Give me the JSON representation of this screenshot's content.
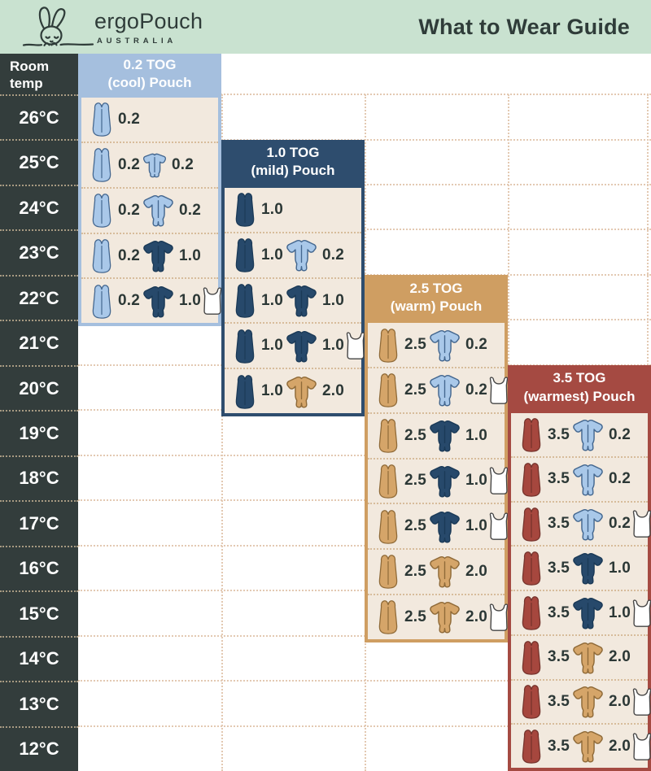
{
  "header": {
    "brand": "ergoPouch",
    "brand_sub": "AUSTRALIA",
    "title": "What to Wear Guide"
  },
  "colors": {
    "mint": "#c9e2d0",
    "charcoal": "#333d3c",
    "dark_text": "#2f3c39",
    "value_text": "#2c3836",
    "panel_body": "#f2e9de",
    "tog02": "#a5bfde",
    "tog10": "#2e4d6e",
    "tog25": "#cf9e62",
    "tog35": "#a54a42",
    "garment_lightblue": "#a9c8e9",
    "garment_lightblue_outline": "#44678f",
    "garment_navy": "#27496b",
    "garment_navy_outline": "#1b3a57",
    "garment_tan": "#d5a569",
    "garment_tan_outline": "#8f6a38",
    "garment_red": "#a6473e",
    "garment_red_outline": "#75332c",
    "garment_white": "#ffffff",
    "garment_white_outline": "#454545",
    "dash_on_white": "#e3c9b2",
    "dash_on_beige": "#d7bc9b",
    "dash_on_dark": "#a79a82"
  },
  "chart_data": {
    "type": "table",
    "title": "What to Wear Guide",
    "row_header_lines": [
      "Room",
      "temp"
    ],
    "temps": [
      "26°C",
      "25°C",
      "24°C",
      "23°C",
      "22°C",
      "21°C",
      "20°C",
      "19°C",
      "18°C",
      "17°C",
      "16°C",
      "15°C",
      "14°C",
      "13°C",
      "12°C"
    ],
    "panels": [
      {
        "id": "panel-0-2-tog",
        "title_line1": "0.2 TOG",
        "title_line2": "(cool) Pouch",
        "color_key": "tog02",
        "column": 0,
        "rows": [
          {
            "temp": "26°C",
            "items": [
              {
                "icon": "sleeping-bag",
                "color": "lightblue",
                "value": "0.2"
              }
            ]
          },
          {
            "temp": "25°C",
            "items": [
              {
                "icon": "sleeping-bag",
                "color": "lightblue",
                "value": "0.2"
              },
              {
                "icon": "romper",
                "color": "lightblue",
                "value": "0.2"
              }
            ]
          },
          {
            "temp": "24°C",
            "items": [
              {
                "icon": "sleeping-bag",
                "color": "lightblue",
                "value": "0.2"
              },
              {
                "icon": "sleepsuit",
                "color": "lightblue",
                "value": "0.2"
              }
            ]
          },
          {
            "temp": "23°C",
            "items": [
              {
                "icon": "sleeping-bag",
                "color": "lightblue",
                "value": "0.2"
              },
              {
                "icon": "sleepsuit",
                "color": "navy",
                "value": "1.0"
              }
            ]
          },
          {
            "temp": "22°C",
            "items": [
              {
                "icon": "sleeping-bag",
                "color": "lightblue",
                "value": "0.2"
              },
              {
                "icon": "sleepsuit",
                "color": "navy",
                "value": "1.0"
              },
              {
                "icon": "singlet",
                "color": "white"
              }
            ]
          }
        ]
      },
      {
        "id": "panel-1-0-tog",
        "title_line1": "1.0 TOG",
        "title_line2": "(mild) Pouch",
        "color_key": "tog10",
        "column": 1,
        "rows": [
          {
            "temp": "24°C",
            "items": [
              {
                "icon": "sleeping-bag",
                "color": "navy",
                "value": "1.0"
              }
            ]
          },
          {
            "temp": "23°C",
            "items": [
              {
                "icon": "sleeping-bag",
                "color": "navy",
                "value": "1.0"
              },
              {
                "icon": "sleepsuit",
                "color": "lightblue",
                "value": "0.2"
              }
            ]
          },
          {
            "temp": "22°C",
            "items": [
              {
                "icon": "sleeping-bag",
                "color": "navy",
                "value": "1.0"
              },
              {
                "icon": "sleepsuit",
                "color": "navy",
                "value": "1.0"
              }
            ]
          },
          {
            "temp": "21°C",
            "items": [
              {
                "icon": "sleeping-bag",
                "color": "navy",
                "value": "1.0"
              },
              {
                "icon": "sleepsuit",
                "color": "navy",
                "value": "1.0"
              },
              {
                "icon": "singlet",
                "color": "white"
              }
            ]
          },
          {
            "temp": "20°C",
            "items": [
              {
                "icon": "sleeping-bag",
                "color": "navy",
                "value": "1.0"
              },
              {
                "icon": "sleepsuit",
                "color": "tan",
                "value": "2.0"
              }
            ]
          }
        ]
      },
      {
        "id": "panel-2-5-tog",
        "title_line1": "2.5 TOG",
        "title_line2": "(warm) Pouch",
        "color_key": "tog25",
        "column": 2,
        "rows": [
          {
            "temp": "21°C",
            "items": [
              {
                "icon": "sleeping-bag",
                "color": "tan",
                "value": "2.5"
              },
              {
                "icon": "sleepsuit",
                "color": "lightblue",
                "value": "0.2"
              }
            ]
          },
          {
            "temp": "20°C",
            "items": [
              {
                "icon": "sleeping-bag",
                "color": "tan",
                "value": "2.5"
              },
              {
                "icon": "sleepsuit",
                "color": "lightblue",
                "value": "0.2"
              },
              {
                "icon": "singlet",
                "color": "white"
              }
            ]
          },
          {
            "temp": "19°C",
            "items": [
              {
                "icon": "sleeping-bag",
                "color": "tan",
                "value": "2.5"
              },
              {
                "icon": "sleepsuit",
                "color": "navy",
                "value": "1.0"
              }
            ]
          },
          {
            "temp": "18°C",
            "items": [
              {
                "icon": "sleeping-bag",
                "color": "tan",
                "value": "2.5"
              },
              {
                "icon": "sleepsuit",
                "color": "navy",
                "value": "1.0"
              },
              {
                "icon": "singlet",
                "color": "white"
              }
            ]
          },
          {
            "temp": "17°C",
            "items": [
              {
                "icon": "sleeping-bag",
                "color": "tan",
                "value": "2.5"
              },
              {
                "icon": "sleepsuit",
                "color": "navy",
                "value": "1.0"
              },
              {
                "icon": "singlet",
                "color": "white"
              }
            ]
          },
          {
            "temp": "16°C",
            "items": [
              {
                "icon": "sleeping-bag",
                "color": "tan",
                "value": "2.5"
              },
              {
                "icon": "sleepsuit",
                "color": "tan",
                "value": "2.0"
              }
            ]
          },
          {
            "temp": "15°C",
            "items": [
              {
                "icon": "sleeping-bag",
                "color": "tan",
                "value": "2.5"
              },
              {
                "icon": "sleepsuit",
                "color": "tan",
                "value": "2.0"
              },
              {
                "icon": "singlet",
                "color": "white"
              }
            ]
          }
        ]
      },
      {
        "id": "panel-3-5-tog",
        "title_line1": "3.5 TOG",
        "title_line2": "(warmest) Pouch",
        "color_key": "tog35",
        "column": 3,
        "rows": [
          {
            "temp": "19°C",
            "items": [
              {
                "icon": "sleeping-bag",
                "color": "red",
                "value": "3.5"
              },
              {
                "icon": "sleepsuit",
                "color": "lightblue",
                "value": "0.2"
              }
            ]
          },
          {
            "temp": "18°C",
            "items": [
              {
                "icon": "sleeping-bag",
                "color": "red",
                "value": "3.5"
              },
              {
                "icon": "sleepsuit",
                "color": "lightblue",
                "value": "0.2"
              }
            ]
          },
          {
            "temp": "17°C",
            "items": [
              {
                "icon": "sleeping-bag",
                "color": "red",
                "value": "3.5"
              },
              {
                "icon": "sleepsuit",
                "color": "lightblue",
                "value": "0.2"
              },
              {
                "icon": "singlet",
                "color": "white"
              }
            ]
          },
          {
            "temp": "16°C",
            "items": [
              {
                "icon": "sleeping-bag",
                "color": "red",
                "value": "3.5"
              },
              {
                "icon": "sleepsuit",
                "color": "navy",
                "value": "1.0"
              }
            ]
          },
          {
            "temp": "15°C",
            "items": [
              {
                "icon": "sleeping-bag",
                "color": "red",
                "value": "3.5"
              },
              {
                "icon": "sleepsuit",
                "color": "navy",
                "value": "1.0"
              },
              {
                "icon": "singlet",
                "color": "white"
              }
            ]
          },
          {
            "temp": "14°C",
            "items": [
              {
                "icon": "sleeping-bag",
                "color": "red",
                "value": "3.5"
              },
              {
                "icon": "sleepsuit",
                "color": "tan",
                "value": "2.0"
              }
            ]
          },
          {
            "temp": "13°C",
            "items": [
              {
                "icon": "sleeping-bag",
                "color": "red",
                "value": "3.5"
              },
              {
                "icon": "sleepsuit",
                "color": "tan",
                "value": "2.0"
              },
              {
                "icon": "singlet",
                "color": "white"
              }
            ]
          },
          {
            "temp": "12°C",
            "items": [
              {
                "icon": "sleeping-bag",
                "color": "red",
                "value": "3.5"
              },
              {
                "icon": "sleepsuit",
                "color": "tan",
                "value": "2.0"
              },
              {
                "icon": "singlet",
                "color": "white"
              }
            ]
          }
        ]
      }
    ]
  }
}
